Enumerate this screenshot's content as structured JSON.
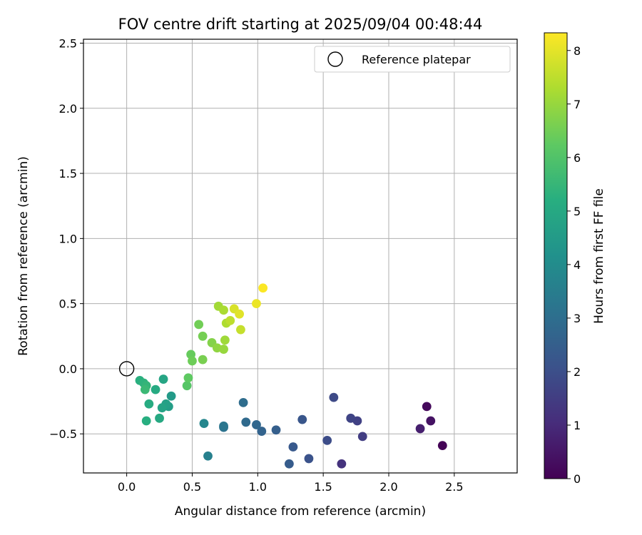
{
  "chart_data": {
    "type": "scatter",
    "title": "FOV centre drift starting at 2025/09/04 00:48:44",
    "xlabel": "Angular distance from reference (arcmin)",
    "ylabel": "Rotation from reference (arcmin)",
    "colorbar_label": "Hours from first FF file",
    "xlim": [
      -0.33,
      2.98
    ],
    "ylim": [
      -0.8,
      2.53
    ],
    "x_ticks": [
      0.0,
      0.5,
      1.0,
      1.5,
      2.0,
      2.5
    ],
    "x_tick_labels": [
      "0.0",
      "0.5",
      "1.0",
      "1.5",
      "2.0",
      "2.5"
    ],
    "y_ticks": [
      -0.5,
      0.0,
      0.5,
      1.0,
      1.5,
      2.0,
      2.5
    ],
    "y_tick_labels": [
      "−0.5",
      "0.0",
      "0.5",
      "1.0",
      "1.5",
      "2.0",
      "2.5"
    ],
    "colorbar_range": [
      0,
      8.33
    ],
    "colorbar_ticks": [
      0,
      1,
      2,
      3,
      4,
      5,
      6,
      7,
      8
    ],
    "colorbar_tick_labels": [
      "0",
      "1",
      "2",
      "3",
      "4",
      "5",
      "6",
      "7",
      "8"
    ],
    "colormap": "viridis",
    "grid": true,
    "legend_position": "top-right",
    "reference": {
      "name": "Reference platepar",
      "x": 0.0,
      "y": 0.0
    },
    "points": [
      {
        "x": 2.41,
        "y": -0.59,
        "h": 0.05
      },
      {
        "x": 2.29,
        "y": -0.29,
        "h": 0.2
      },
      {
        "x": 2.32,
        "y": -0.4,
        "h": 0.4
      },
      {
        "x": 2.24,
        "y": -0.46,
        "h": 0.7
      },
      {
        "x": 1.64,
        "y": -0.73,
        "h": 1.2
      },
      {
        "x": 1.8,
        "y": -0.52,
        "h": 1.5
      },
      {
        "x": 1.76,
        "y": -0.4,
        "h": 1.6
      },
      {
        "x": 1.71,
        "y": -0.38,
        "h": 1.7
      },
      {
        "x": 1.58,
        "y": -0.22,
        "h": 1.85
      },
      {
        "x": 1.53,
        "y": -0.55,
        "h": 1.95
      },
      {
        "x": 1.39,
        "y": -0.69,
        "h": 2.1
      },
      {
        "x": 1.34,
        "y": -0.39,
        "h": 2.2
      },
      {
        "x": 1.27,
        "y": -0.6,
        "h": 2.3
      },
      {
        "x": 1.24,
        "y": -0.73,
        "h": 2.4
      },
      {
        "x": 1.14,
        "y": -0.47,
        "h": 2.5
      },
      {
        "x": 1.03,
        "y": -0.48,
        "h": 2.65
      },
      {
        "x": 0.99,
        "y": -0.43,
        "h": 2.75
      },
      {
        "x": 0.91,
        "y": -0.41,
        "h": 2.85
      },
      {
        "x": 0.89,
        "y": -0.26,
        "h": 2.95
      },
      {
        "x": 0.74,
        "y": -0.45,
        "h": 3.1
      },
      {
        "x": 0.74,
        "y": -0.44,
        "h": 3.25
      },
      {
        "x": 0.62,
        "y": -0.67,
        "h": 3.6
      },
      {
        "x": 0.59,
        "y": -0.42,
        "h": 3.8
      },
      {
        "x": 0.34,
        "y": -0.21,
        "h": 4.5
      },
      {
        "x": 0.32,
        "y": -0.29,
        "h": 4.6
      },
      {
        "x": 0.3,
        "y": -0.27,
        "h": 4.7
      },
      {
        "x": 0.27,
        "y": -0.3,
        "h": 4.8
      },
      {
        "x": 0.28,
        "y": -0.08,
        "h": 4.9
      },
      {
        "x": 0.25,
        "y": -0.38,
        "h": 5.0
      },
      {
        "x": 0.22,
        "y": -0.16,
        "h": 5.05
      },
      {
        "x": 0.17,
        "y": -0.27,
        "h": 5.1
      },
      {
        "x": 0.15,
        "y": -0.4,
        "h": 5.2
      },
      {
        "x": 0.1,
        "y": -0.09,
        "h": 5.25
      },
      {
        "x": 0.13,
        "y": -0.11,
        "h": 5.35
      },
      {
        "x": 0.15,
        "y": -0.13,
        "h": 5.45
      },
      {
        "x": 0.14,
        "y": -0.16,
        "h": 5.6
      },
      {
        "x": 0.46,
        "y": -0.13,
        "h": 6.1
      },
      {
        "x": 0.47,
        "y": -0.07,
        "h": 6.25
      },
      {
        "x": 0.49,
        "y": 0.11,
        "h": 6.35
      },
      {
        "x": 0.5,
        "y": 0.06,
        "h": 6.45
      },
      {
        "x": 0.55,
        "y": 0.34,
        "h": 6.5
      },
      {
        "x": 0.58,
        "y": 0.25,
        "h": 6.55
      },
      {
        "x": 0.58,
        "y": 0.07,
        "h": 6.6
      },
      {
        "x": 0.65,
        "y": 0.2,
        "h": 6.75
      },
      {
        "x": 0.69,
        "y": 0.16,
        "h": 6.9
      },
      {
        "x": 0.74,
        "y": 0.15,
        "h": 7.0
      },
      {
        "x": 0.75,
        "y": 0.22,
        "h": 7.1
      },
      {
        "x": 0.76,
        "y": 0.35,
        "h": 7.3
      },
      {
        "x": 0.7,
        "y": 0.48,
        "h": 7.15
      },
      {
        "x": 0.74,
        "y": 0.45,
        "h": 7.25
      },
      {
        "x": 0.79,
        "y": 0.37,
        "h": 7.5
      },
      {
        "x": 0.87,
        "y": 0.3,
        "h": 7.6
      },
      {
        "x": 0.82,
        "y": 0.46,
        "h": 7.85
      },
      {
        "x": 0.86,
        "y": 0.42,
        "h": 7.95
      },
      {
        "x": 0.99,
        "y": 0.5,
        "h": 8.1
      },
      {
        "x": 1.04,
        "y": 0.62,
        "h": 8.3
      }
    ]
  }
}
